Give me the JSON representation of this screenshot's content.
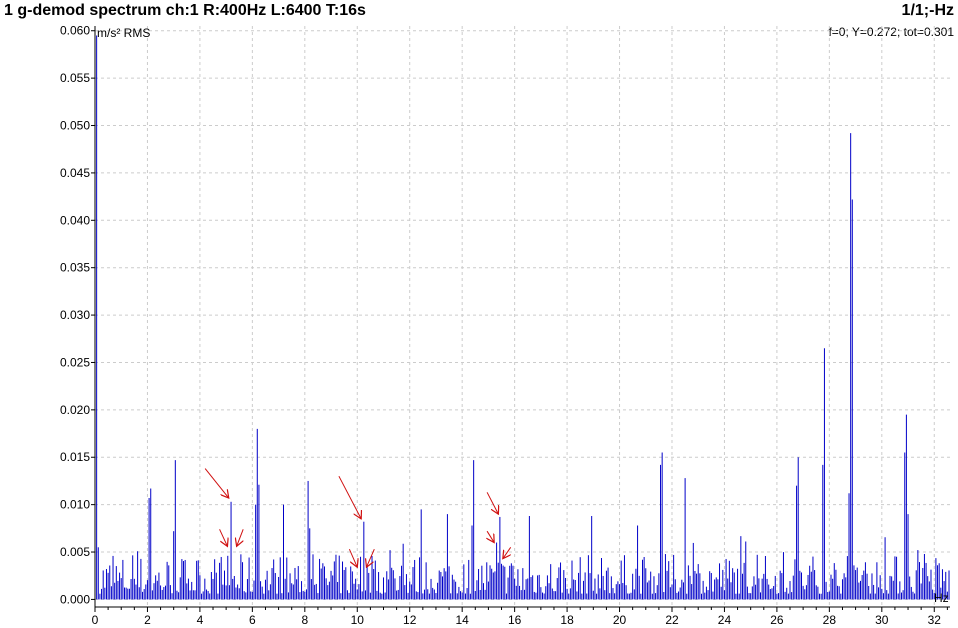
{
  "header": {
    "title": "1 g-demod spectrum ch:1 R:400Hz L:6400 T:16s",
    "page_indicator": "1/1;-Hz",
    "readout": "f=0; Y=0.272; tot=0.301"
  },
  "colors": {
    "series": "#0000c8",
    "arrow": "#d01010",
    "grid": "#cccccc",
    "axis": "#000000"
  },
  "chart_data": {
    "type": "bar",
    "title": "1 g-demod spectrum ch:1 R:400Hz L:6400 T:16s",
    "ylabel": "m/s² RMS",
    "xlabel": "Hz",
    "xlim": [
      0,
      32.6
    ],
    "ylim": [
      -0.0008,
      0.0605
    ],
    "grid": true,
    "x_ticks": [
      0,
      2,
      4,
      6,
      8,
      10,
      12,
      14,
      16,
      18,
      20,
      22,
      24,
      26,
      28,
      30,
      32
    ],
    "y_ticks": [
      "0.000",
      "0.005",
      "0.010",
      "0.015",
      "0.020",
      "0.025",
      "0.030",
      "0.035",
      "0.040",
      "0.045",
      "0.050",
      "0.055",
      "0.060"
    ],
    "peaks": [
      {
        "x": 0.06,
        "y": 0.0595
      },
      {
        "x": 0.12,
        "y": 0.0055
      },
      {
        "x": 2.06,
        "y": 0.0107
      },
      {
        "x": 2.12,
        "y": 0.0117
      },
      {
        "x": 3.0,
        "y": 0.0072
      },
      {
        "x": 3.06,
        "y": 0.0147
      },
      {
        "x": 5.19,
        "y": 0.0103
      },
      {
        "x": 5.06,
        "y": 0.0046
      },
      {
        "x": 6.12,
        "y": 0.01
      },
      {
        "x": 6.19,
        "y": 0.018
      },
      {
        "x": 6.25,
        "y": 0.0121
      },
      {
        "x": 7.19,
        "y": 0.01
      },
      {
        "x": 8.12,
        "y": 0.0125
      },
      {
        "x": 8.19,
        "y": 0.0075
      },
      {
        "x": 10.25,
        "y": 0.0082
      },
      {
        "x": 10.12,
        "y": 0.0045
      },
      {
        "x": 11.25,
        "y": 0.0052
      },
      {
        "x": 12.44,
        "y": 0.0095
      },
      {
        "x": 13.44,
        "y": 0.009
      },
      {
        "x": 14.44,
        "y": 0.0147
      },
      {
        "x": 14.38,
        "y": 0.0078
      },
      {
        "x": 15.44,
        "y": 0.0087
      },
      {
        "x": 15.31,
        "y": 0.006
      },
      {
        "x": 16.56,
        "y": 0.0088
      },
      {
        "x": 18.94,
        "y": 0.0088
      },
      {
        "x": 20.69,
        "y": 0.0078
      },
      {
        "x": 21.56,
        "y": 0.0142
      },
      {
        "x": 21.62,
        "y": 0.0155
      },
      {
        "x": 22.5,
        "y": 0.0128
      },
      {
        "x": 26.81,
        "y": 0.015
      },
      {
        "x": 26.75,
        "y": 0.012
      },
      {
        "x": 27.81,
        "y": 0.0265
      },
      {
        "x": 27.75,
        "y": 0.0142
      },
      {
        "x": 28.75,
        "y": 0.0112
      },
      {
        "x": 28.81,
        "y": 0.0492
      },
      {
        "x": 28.88,
        "y": 0.0422
      },
      {
        "x": 30.88,
        "y": 0.0155
      },
      {
        "x": 30.94,
        "y": 0.0195
      },
      {
        "x": 31.0,
        "y": 0.009
      }
    ],
    "annotations": [
      {
        "type": "arrow",
        "from": [
          4.2,
          0.0138
        ],
        "to": [
          5.1,
          0.0107
        ]
      },
      {
        "type": "arrow",
        "from": [
          4.75,
          0.0074
        ],
        "to": [
          5.05,
          0.0056
        ]
      },
      {
        "type": "arrow",
        "from": [
          5.65,
          0.0074
        ],
        "to": [
          5.4,
          0.0056
        ]
      },
      {
        "type": "arrow",
        "from": [
          9.3,
          0.013
        ],
        "to": [
          10.15,
          0.0085
        ]
      },
      {
        "type": "arrow",
        "from": [
          9.7,
          0.0053
        ],
        "to": [
          10.0,
          0.0034
        ]
      },
      {
        "type": "arrow",
        "from": [
          10.65,
          0.0053
        ],
        "to": [
          10.35,
          0.0034
        ]
      },
      {
        "type": "arrow",
        "from": [
          14.95,
          0.0113
        ],
        "to": [
          15.38,
          0.009
        ]
      },
      {
        "type": "arrow",
        "from": [
          14.95,
          0.0072
        ],
        "to": [
          15.22,
          0.006
        ]
      },
      {
        "type": "arrow",
        "from": [
          15.85,
          0.0055
        ],
        "to": [
          15.55,
          0.0043
        ]
      }
    ]
  }
}
